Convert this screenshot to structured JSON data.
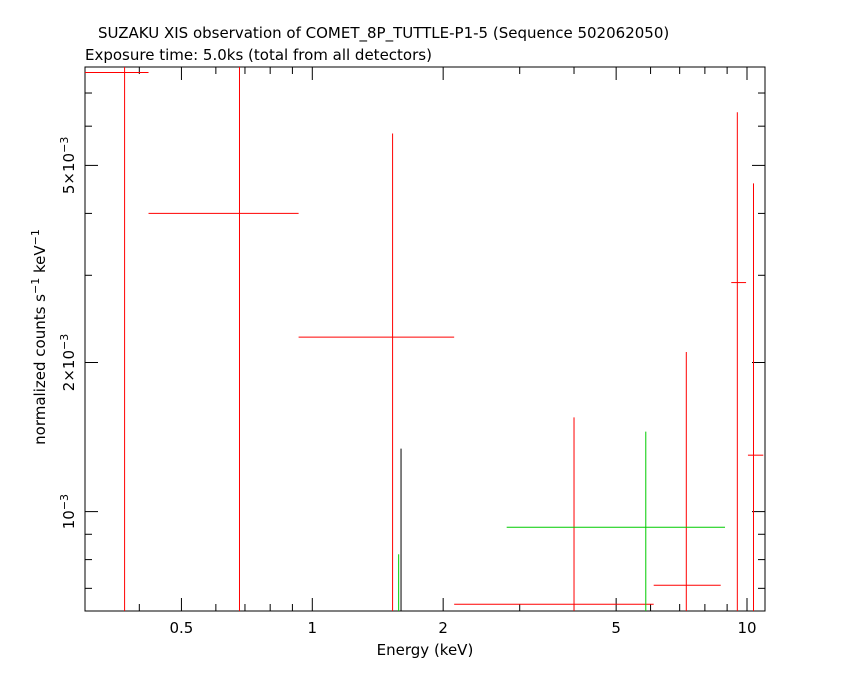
{
  "chart_data": {
    "type": "scatter",
    "title": "SUZAKU XIS observation of COMET_8P_TUTTLE-P1-5 (Sequence 502062050)",
    "subtitle": "Exposure time: 5.0ks (total from all detectors)",
    "xlabel": "Energy (keV)",
    "ylabel": {
      "text": "normalized counts s",
      "sup1": "−1",
      "mid": " keV",
      "sup2": "−1"
    },
    "xscale": "log",
    "yscale": "log",
    "xlim": [
      0.3,
      11.0
    ],
    "ylim": [
      0.00063,
      0.0079
    ],
    "x_ticks": [
      {
        "value": 0.5,
        "label": "0.5"
      },
      {
        "value": 1,
        "label": "1"
      },
      {
        "value": 2,
        "label": "2"
      },
      {
        "value": 5,
        "label": "5"
      },
      {
        "value": 10,
        "label": "10"
      }
    ],
    "y_ticks": [
      {
        "value": 0.001,
        "mantissa": "",
        "base": "10",
        "exp": "−3"
      },
      {
        "value": 0.002,
        "mantissa": "2×",
        "base": "10",
        "exp": "−3"
      },
      {
        "value": 0.005,
        "mantissa": "5×",
        "base": "10",
        "exp": "−3"
      }
    ],
    "series": [
      {
        "color": "#ff0000",
        "points": [
          {
            "x": 0.37,
            "xlo": 0.3,
            "xhi": 0.42,
            "y": 0.0077,
            "ylo": 0.00063,
            "yhi": 0.0079
          },
          {
            "x": 0.68,
            "xlo": 0.42,
            "xhi": 0.93,
            "y": 0.004,
            "ylo": 0.00063,
            "yhi": 0.0079
          },
          {
            "x": 1.53,
            "xlo": 0.93,
            "xhi": 2.12,
            "y": 0.00225,
            "ylo": 0.00063,
            "yhi": 0.0058
          },
          {
            "x": 4.0,
            "xlo": 2.12,
            "xhi": 6.1,
            "y": 0.00065,
            "ylo": 0.00063,
            "yhi": 0.00155
          },
          {
            "x": 7.25,
            "xlo": 6.1,
            "xhi": 8.7,
            "y": 0.00071,
            "ylo": 0.00063,
            "yhi": 0.0021
          },
          {
            "x": 9.5,
            "xlo": 9.2,
            "xhi": 9.95,
            "y": 0.0029,
            "ylo": 0.00063,
            "yhi": 0.0064
          },
          {
            "x": 10.35,
            "xlo": 10.05,
            "xhi": 10.9,
            "y": 0.0013,
            "ylo": 0.00063,
            "yhi": 0.0046
          }
        ]
      },
      {
        "color": "#00cc00",
        "points": [
          {
            "x": 1.58,
            "xlo": 1.58,
            "xhi": 1.58,
            "y": 0.00063,
            "ylo": 0.00063,
            "yhi": 0.00082
          },
          {
            "x": 5.85,
            "xlo": 2.8,
            "xhi": 8.9,
            "y": 0.00093,
            "ylo": 0.00063,
            "yhi": 0.00145
          }
        ]
      },
      {
        "color": "#000000",
        "points": [
          {
            "x": 1.6,
            "xlo": 1.6,
            "xhi": 1.6,
            "y": 0.00063,
            "ylo": 0.00063,
            "yhi": 0.00134
          }
        ]
      }
    ]
  }
}
